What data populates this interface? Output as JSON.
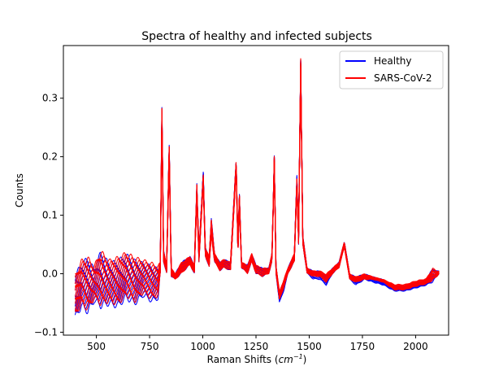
{
  "chart_data": {
    "type": "line",
    "title": "Spectra of healthy and infected subjects",
    "xlabel_main": "Raman Shifts (",
    "xlabel_unit_base": "cm",
    "xlabel_unit_exp": "−1",
    "xlabel_close": ")",
    "ylabel": "Counts",
    "xlim": [
      345,
      2155
    ],
    "ylim": [
      -0.105,
      0.39
    ],
    "x_ticks": [
      500,
      750,
      1000,
      1250,
      1500,
      1750,
      2000
    ],
    "x_tick_labels": [
      "500",
      "750",
      "1000",
      "1250",
      "1500",
      "1750",
      "2000"
    ],
    "y_ticks": [
      -0.1,
      0.0,
      0.1,
      0.2,
      0.3
    ],
    "y_tick_labels": [
      "−0.1",
      "0.0",
      "0.1",
      "0.2",
      "0.3"
    ],
    "legend_position": "top-right",
    "grid": false,
    "series": [
      {
        "name": "Healthy",
        "color": "#0000ff",
        "band_min": [
          [
            400,
            -0.08
          ],
          [
            430,
            -0.06
          ],
          [
            460,
            -0.07
          ],
          [
            490,
            -0.05
          ],
          [
            520,
            -0.06
          ],
          [
            560,
            -0.055
          ],
          [
            600,
            -0.06
          ],
          [
            640,
            -0.045
          ],
          [
            680,
            -0.055
          ],
          [
            720,
            -0.04
          ],
          [
            760,
            -0.05
          ],
          [
            790,
            -0.045
          ],
          [
            800,
            0.0
          ],
          [
            808,
            0.25
          ],
          [
            816,
            0.02
          ],
          [
            830,
            0.0
          ],
          [
            842,
            0.2
          ],
          [
            852,
            -0.005
          ],
          [
            870,
            -0.01
          ],
          [
            900,
            0.0
          ],
          [
            940,
            0.015
          ],
          [
            960,
            0.0
          ],
          [
            972,
            0.13
          ],
          [
            982,
            0.02
          ],
          [
            1002,
            0.16
          ],
          [
            1012,
            0.03
          ],
          [
            1030,
            0.01
          ],
          [
            1040,
            0.07
          ],
          [
            1055,
            0.02
          ],
          [
            1080,
            0.005
          ],
          [
            1100,
            0.01
          ],
          [
            1130,
            0.005
          ],
          [
            1157,
            0.18
          ],
          [
            1165,
            0.03
          ],
          [
            1172,
            0.12
          ],
          [
            1182,
            0.01
          ],
          [
            1210,
            0.0
          ],
          [
            1230,
            0.02
          ],
          [
            1250,
            0.0
          ],
          [
            1280,
            -0.005
          ],
          [
            1310,
            0.0
          ],
          [
            1325,
            0.02
          ],
          [
            1336,
            0.19
          ],
          [
            1344,
            0.0
          ],
          [
            1360,
            -0.05
          ],
          [
            1380,
            -0.03
          ],
          [
            1400,
            0.0
          ],
          [
            1430,
            0.02
          ],
          [
            1442,
            0.15
          ],
          [
            1450,
            0.05
          ],
          [
            1460,
            0.35
          ],
          [
            1470,
            0.05
          ],
          [
            1490,
            0.0
          ],
          [
            1520,
            -0.01
          ],
          [
            1550,
            -0.01
          ],
          [
            1580,
            -0.02
          ],
          [
            1610,
            0.0
          ],
          [
            1640,
            0.01
          ],
          [
            1665,
            0.05
          ],
          [
            1690,
            -0.01
          ],
          [
            1720,
            -0.02
          ],
          [
            1760,
            -0.01
          ],
          [
            1800,
            -0.015
          ],
          [
            1850,
            -0.02
          ],
          [
            1900,
            -0.03
          ],
          [
            1950,
            -0.03
          ],
          [
            2000,
            -0.025
          ],
          [
            2050,
            -0.02
          ],
          [
            2080,
            -0.015
          ],
          [
            2100,
            -0.005
          ],
          [
            2110,
            0.0
          ]
        ],
        "band_max": [
          [
            400,
            0.0
          ],
          [
            430,
            0.02
          ],
          [
            460,
            0.03
          ],
          [
            490,
            0.01
          ],
          [
            520,
            0.04
          ],
          [
            560,
            0.02
          ],
          [
            600,
            0.025
          ],
          [
            640,
            0.035
          ],
          [
            680,
            0.025
          ],
          [
            720,
            0.02
          ],
          [
            760,
            0.015
          ],
          [
            790,
            0.01
          ],
          [
            800,
            0.02
          ],
          [
            808,
            0.285
          ],
          [
            816,
            0.04
          ],
          [
            830,
            0.015
          ],
          [
            842,
            0.22
          ],
          [
            852,
            0.01
          ],
          [
            870,
            0.0
          ],
          [
            900,
            0.02
          ],
          [
            940,
            0.03
          ],
          [
            960,
            0.015
          ],
          [
            972,
            0.155
          ],
          [
            982,
            0.04
          ],
          [
            1002,
            0.175
          ],
          [
            1012,
            0.045
          ],
          [
            1030,
            0.03
          ],
          [
            1040,
            0.095
          ],
          [
            1055,
            0.035
          ],
          [
            1080,
            0.02
          ],
          [
            1100,
            0.025
          ],
          [
            1130,
            0.02
          ],
          [
            1157,
            0.197
          ],
          [
            1165,
            0.05
          ],
          [
            1172,
            0.136
          ],
          [
            1182,
            0.02
          ],
          [
            1210,
            0.015
          ],
          [
            1230,
            0.035
          ],
          [
            1250,
            0.015
          ],
          [
            1280,
            0.01
          ],
          [
            1310,
            0.01
          ],
          [
            1325,
            0.035
          ],
          [
            1336,
            0.202
          ],
          [
            1344,
            0.015
          ],
          [
            1360,
            -0.035
          ],
          [
            1380,
            -0.015
          ],
          [
            1400,
            0.01
          ],
          [
            1430,
            0.035
          ],
          [
            1442,
            0.168
          ],
          [
            1450,
            0.065
          ],
          [
            1460,
            0.368
          ],
          [
            1470,
            0.065
          ],
          [
            1490,
            0.01
          ],
          [
            1520,
            0.005
          ],
          [
            1550,
            0.005
          ],
          [
            1580,
            -0.005
          ],
          [
            1610,
            0.01
          ],
          [
            1640,
            0.02
          ],
          [
            1665,
            0.055
          ],
          [
            1690,
            0.0
          ],
          [
            1720,
            -0.005
          ],
          [
            1760,
            0.0
          ],
          [
            1800,
            -0.005
          ],
          [
            1850,
            -0.01
          ],
          [
            1900,
            -0.02
          ],
          [
            1950,
            -0.02
          ],
          [
            2000,
            -0.015
          ],
          [
            2050,
            -0.01
          ],
          [
            2080,
            0.01
          ],
          [
            2100,
            0.005
          ],
          [
            2110,
            0.005
          ]
        ]
      },
      {
        "name": "SARS-CoV-2",
        "color": "#ff0000",
        "band_min": [
          [
            400,
            -0.075
          ],
          [
            430,
            -0.055
          ],
          [
            460,
            -0.065
          ],
          [
            490,
            -0.045
          ],
          [
            520,
            -0.055
          ],
          [
            560,
            -0.05
          ],
          [
            600,
            -0.055
          ],
          [
            640,
            -0.04
          ],
          [
            680,
            -0.05
          ],
          [
            720,
            -0.035
          ],
          [
            760,
            -0.045
          ],
          [
            790,
            -0.04
          ],
          [
            800,
            0.0
          ],
          [
            808,
            0.245
          ],
          [
            816,
            0.02
          ],
          [
            830,
            0.0
          ],
          [
            842,
            0.195
          ],
          [
            852,
            -0.005
          ],
          [
            870,
            -0.01
          ],
          [
            900,
            0.0
          ],
          [
            940,
            0.015
          ],
          [
            960,
            0.0
          ],
          [
            972,
            0.125
          ],
          [
            982,
            0.02
          ],
          [
            1002,
            0.15
          ],
          [
            1012,
            0.03
          ],
          [
            1030,
            0.01
          ],
          [
            1040,
            0.065
          ],
          [
            1055,
            0.02
          ],
          [
            1080,
            0.005
          ],
          [
            1100,
            0.01
          ],
          [
            1130,
            0.005
          ],
          [
            1157,
            0.175
          ],
          [
            1165,
            0.03
          ],
          [
            1172,
            0.12
          ],
          [
            1182,
            0.01
          ],
          [
            1210,
            0.0
          ],
          [
            1230,
            0.02
          ],
          [
            1250,
            0.0
          ],
          [
            1280,
            -0.005
          ],
          [
            1310,
            0.0
          ],
          [
            1325,
            0.02
          ],
          [
            1336,
            0.185
          ],
          [
            1344,
            0.0
          ],
          [
            1360,
            -0.045
          ],
          [
            1380,
            -0.025
          ],
          [
            1400,
            0.0
          ],
          [
            1430,
            0.02
          ],
          [
            1442,
            0.145
          ],
          [
            1450,
            0.05
          ],
          [
            1460,
            0.345
          ],
          [
            1470,
            0.05
          ],
          [
            1490,
            0.0
          ],
          [
            1520,
            -0.005
          ],
          [
            1550,
            -0.005
          ],
          [
            1580,
            -0.015
          ],
          [
            1610,
            0.0
          ],
          [
            1640,
            0.01
          ],
          [
            1665,
            0.045
          ],
          [
            1690,
            -0.01
          ],
          [
            1720,
            -0.015
          ],
          [
            1760,
            -0.01
          ],
          [
            1800,
            -0.01
          ],
          [
            1850,
            -0.015
          ],
          [
            1900,
            -0.028
          ],
          [
            1950,
            -0.028
          ],
          [
            2000,
            -0.022
          ],
          [
            2050,
            -0.018
          ],
          [
            2080,
            -0.012
          ],
          [
            2100,
            -0.005
          ],
          [
            2110,
            0.0
          ]
        ],
        "band_max": [
          [
            400,
            0.0
          ],
          [
            430,
            0.025
          ],
          [
            460,
            0.03
          ],
          [
            490,
            0.015
          ],
          [
            520,
            0.042
          ],
          [
            560,
            0.025
          ],
          [
            600,
            0.03
          ],
          [
            640,
            0.038
          ],
          [
            680,
            0.03
          ],
          [
            720,
            0.025
          ],
          [
            760,
            0.02
          ],
          [
            790,
            0.015
          ],
          [
            800,
            0.02
          ],
          [
            808,
            0.287
          ],
          [
            816,
            0.04
          ],
          [
            830,
            0.015
          ],
          [
            842,
            0.22
          ],
          [
            852,
            0.01
          ],
          [
            870,
            0.0
          ],
          [
            900,
            0.02
          ],
          [
            940,
            0.03
          ],
          [
            960,
            0.015
          ],
          [
            972,
            0.155
          ],
          [
            982,
            0.04
          ],
          [
            1002,
            0.17
          ],
          [
            1012,
            0.045
          ],
          [
            1030,
            0.03
          ],
          [
            1040,
            0.095
          ],
          [
            1055,
            0.035
          ],
          [
            1080,
            0.02
          ],
          [
            1100,
            0.025
          ],
          [
            1130,
            0.02
          ],
          [
            1157,
            0.197
          ],
          [
            1165,
            0.05
          ],
          [
            1172,
            0.135
          ],
          [
            1182,
            0.02
          ],
          [
            1210,
            0.015
          ],
          [
            1230,
            0.035
          ],
          [
            1250,
            0.015
          ],
          [
            1280,
            0.01
          ],
          [
            1310,
            0.01
          ],
          [
            1325,
            0.035
          ],
          [
            1336,
            0.202
          ],
          [
            1344,
            0.015
          ],
          [
            1360,
            -0.03
          ],
          [
            1380,
            -0.01
          ],
          [
            1400,
            0.01
          ],
          [
            1430,
            0.035
          ],
          [
            1442,
            0.165
          ],
          [
            1450,
            0.065
          ],
          [
            1460,
            0.368
          ],
          [
            1470,
            0.065
          ],
          [
            1490,
            0.01
          ],
          [
            1520,
            0.005
          ],
          [
            1550,
            0.005
          ],
          [
            1580,
            0.0
          ],
          [
            1610,
            0.01
          ],
          [
            1640,
            0.02
          ],
          [
            1665,
            0.055
          ],
          [
            1690,
            0.0
          ],
          [
            1720,
            -0.005
          ],
          [
            1760,
            0.0
          ],
          [
            1800,
            -0.005
          ],
          [
            1850,
            -0.01
          ],
          [
            1900,
            -0.018
          ],
          [
            1950,
            -0.018
          ],
          [
            2000,
            -0.012
          ],
          [
            2050,
            -0.008
          ],
          [
            2080,
            0.01
          ],
          [
            2100,
            0.005
          ],
          [
            2110,
            0.005
          ]
        ]
      }
    ]
  }
}
